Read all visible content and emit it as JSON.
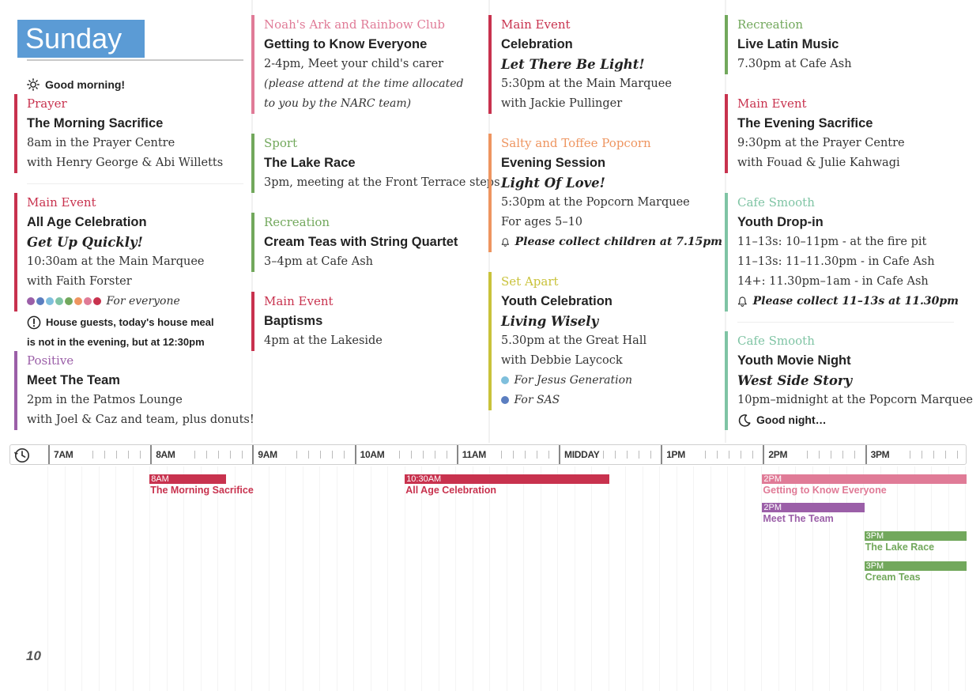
{
  "day": "Sunday",
  "greeting_morning": "Good morning!",
  "greeting_night": "Good night…",
  "page_number": "10",
  "colors": {
    "blue": "#5b9bd5",
    "crimson": "#c8324e",
    "pink": "#e07b97",
    "green": "#72a85c",
    "purple": "#9b5fa8",
    "orange": "#ee9560",
    "yellow": "#c9c23a",
    "teal": "#7fc4a4"
  },
  "col1": {
    "prayer": {
      "category": "Prayer",
      "title": "The Morning Sacrifice",
      "time": "8am in the Prayer Centre",
      "with": "with Henry George & Abi Willetts"
    },
    "main": {
      "category": "Main Event",
      "title": "All Age Celebration",
      "subtitle": "Get Up Quickly!",
      "time": "10:30am at the Main Marquee",
      "with": "with Faith Forster",
      "audience": "For everyone",
      "notice_1": "House guests, today's house meal",
      "notice_2": "is not in the evening, but at 12:30pm"
    },
    "positive": {
      "category": "Positive",
      "title": "Meet The Team",
      "time": "2pm in the Patmos Lounge",
      "with": "with Joel & Caz and team, plus donuts!"
    }
  },
  "col2": {
    "narc": {
      "category": "Noah's Ark and Rainbow Club",
      "title": "Getting to Know Everyone",
      "time": "2-4pm, Meet your child's carer",
      "note_1": "(please attend at the time allocated",
      "note_2": "to you by the NARC team)"
    },
    "sport": {
      "category": "Sport",
      "title": "The Lake Race",
      "time": "3pm, meeting at the Front Terrace steps"
    },
    "recreation": {
      "category": "Recreation",
      "title": "Cream Teas with String Quartet",
      "time": "3–4pm at Cafe Ash"
    },
    "main": {
      "category": "Main Event",
      "title": "Baptisms",
      "time": "4pm at the Lakeside"
    }
  },
  "col3": {
    "main": {
      "category": "Main Event",
      "title": "Celebration",
      "subtitle": "Let There Be Light!",
      "time": "5:30pm at the Main Marquee",
      "with": "with Jackie Pullinger"
    },
    "popcorn": {
      "category": "Salty and Toffee Popcorn",
      "title": "Evening Session",
      "subtitle": "Light Of Love!",
      "time": "5:30pm at the Popcorn Marquee",
      "ages": "For ages 5–10",
      "alert": "Please collect children at 7.15pm"
    },
    "setapart": {
      "category": "Set Apart",
      "title": "Youth Celebration",
      "subtitle": "Living Wisely",
      "time": "5.30pm at the Great Hall",
      "with": "with Debbie Laycock",
      "audience_1": "For Jesus Generation",
      "audience_2": "For SAS"
    }
  },
  "col4": {
    "recreation": {
      "category": "Recreation",
      "title": "Live Latin Music",
      "time": "7.30pm at Cafe Ash"
    },
    "main": {
      "category": "Main Event",
      "title": "The Evening Sacrifice",
      "time": "9:30pm at the Prayer Centre",
      "with": "with Fouad & Julie Kahwagi"
    },
    "smooth1": {
      "category": "Cafe Smooth",
      "title": "Youth Drop-in",
      "time_1": "11–13s: 10–11pm - at the fire pit",
      "time_2": "11–13s: 11–11.30pm - in Cafe Ash",
      "time_3": "14+: 11.30pm–1am - in Cafe Ash",
      "alert": "Please collect 11–13s at 11.30pm"
    },
    "smooth2": {
      "category": "Cafe Smooth",
      "title": "Youth Movie Night",
      "subtitle": "West Side Story",
      "time": "10pm–midnight at the Popcorn Marquee"
    }
  },
  "timeline": {
    "hours": [
      "7AM",
      "8AM",
      "9AM",
      "10AM",
      "11AM",
      "MIDDAY",
      "1PM",
      "2PM",
      "3PM"
    ],
    "bars": [
      {
        "time": "8AM",
        "label": "The Morning Sacrifice",
        "start_hour": 8,
        "end_hour": 8.75,
        "color": "#c8324e",
        "lane": 0
      },
      {
        "time": "10:30AM",
        "label": "All Age Celebration",
        "start_hour": 10.5,
        "end_hour": 12.5,
        "color": "#c8324e",
        "lane": 0
      },
      {
        "time": "2PM",
        "label": "Getting to Know Everyone",
        "start_hour": 14,
        "end_hour": 16,
        "color": "#e07b97",
        "lane": 0
      },
      {
        "time": "2PM",
        "label": "Meet The Team",
        "start_hour": 14,
        "end_hour": 15,
        "color": "#9b5fa8",
        "lane": 1
      },
      {
        "time": "3PM",
        "label": "The Lake Race",
        "start_hour": 15,
        "end_hour": 16,
        "color": "#72a85c",
        "lane": 2
      },
      {
        "time": "3PM",
        "label": "Cream Teas",
        "start_hour": 15,
        "end_hour": 16,
        "color": "#72a85c",
        "lane": 3
      }
    ]
  }
}
